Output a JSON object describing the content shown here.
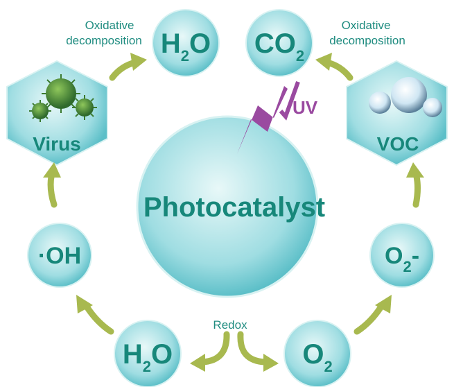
{
  "center": {
    "label": "Photocatalyst"
  },
  "uv": "UV",
  "notes": {
    "left": [
      "Oxidative",
      "decomposition"
    ],
    "right": [
      "Oxidative",
      "decomposition"
    ],
    "redox": "Redox"
  },
  "nodes": [
    {
      "label": "H",
      "subscript": "2",
      "label_end": "O"
    },
    {
      "label": "CO",
      "subscript": "2"
    },
    {
      "label": "Virus"
    },
    {
      "label": "VOC"
    },
    {
      "label": "·OH"
    },
    {
      "label": "O",
      "subscript": "2",
      "label_end": "-"
    },
    {
      "label": "H",
      "subscript": "2",
      "label_end": "O"
    },
    {
      "label": "O",
      "subscript": "2"
    }
  ]
}
